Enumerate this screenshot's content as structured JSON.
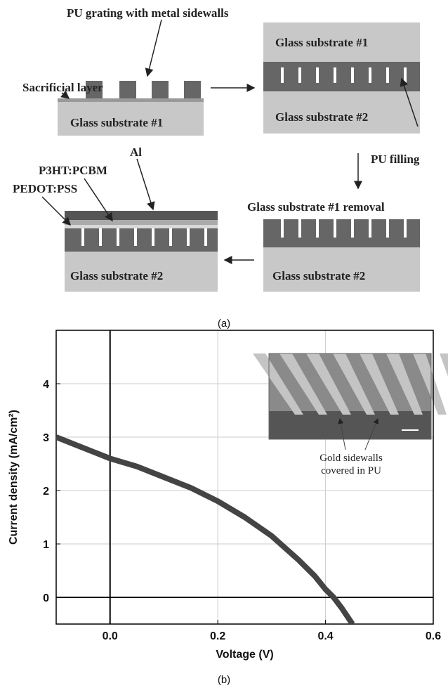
{
  "diagram": {
    "labels": [
      "PU grating with metal sidewalls",
      "Sacrificial layer",
      "Glass substrate #1",
      "Glass substrate #1",
      "Glass substrate #2",
      "PU filling",
      "Al",
      "P3HT:PCBM",
      "PEDOT:PSS",
      "Glass substrate #1 removal",
      "Glass substrate #2",
      "Glass substrate #2"
    ],
    "caption": "(a)"
  },
  "chart_data": {
    "type": "line",
    "x_label": "Voltage (V)",
    "y_label": "Current density (mA/cm²)",
    "x": [
      -0.1,
      -0.05,
      0,
      0.05,
      0.1,
      0.15,
      0.2,
      0.25,
      0.3,
      0.35,
      0.38,
      0.4,
      0.415,
      0.43,
      0.45
    ],
    "series": [
      {
        "color": "#444444",
        "values": [
          3.0,
          2.8,
          2.6,
          2.45,
          2.25,
          2.05,
          1.8,
          1.5,
          1.15,
          0.7,
          0.4,
          0.15,
          0.0,
          -0.2,
          -0.5
        ]
      }
    ],
    "xlim": [
      -0.1,
      0.6
    ],
    "ylim": [
      -0.5,
      5
    ],
    "xticks": [
      {
        "value": 0,
        "label": "0.0"
      },
      0.2,
      0.4,
      0.6
    ],
    "yticks": [
      0,
      1,
      2,
      3,
      4
    ],
    "grid": true,
    "annotation": [
      "Gold sidewalls",
      "covered in PU"
    ]
  },
  "caption": "(b)"
}
